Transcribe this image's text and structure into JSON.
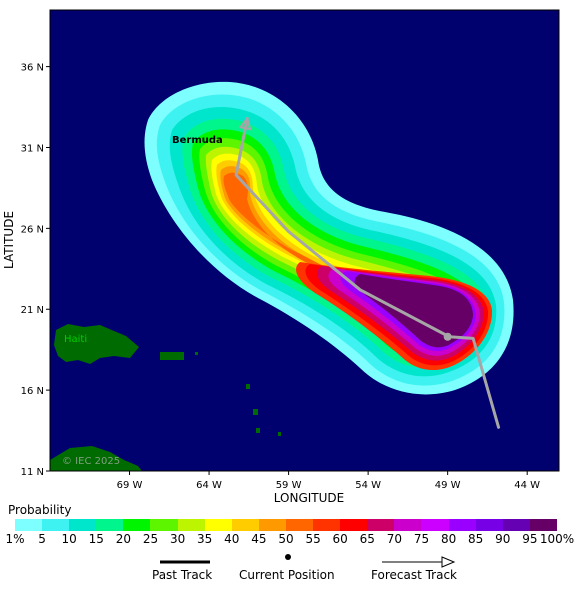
{
  "map": {
    "place_labels": {
      "bermuda": "Bermuda",
      "haiti": "Haiti"
    },
    "copyright": "© IEC 2025",
    "y_axis_title": "LATITUDE",
    "x_axis_title": "LONGITUDE",
    "lat_ticks": [
      "36 N",
      "31 N",
      "26 N",
      "21 N",
      "16 N",
      "11 N"
    ],
    "lon_ticks": [
      "69 W",
      "64 W",
      "59 W",
      "54 W",
      "49 W",
      "44 W"
    ],
    "lat_range": [
      11,
      39.5
    ],
    "lon_range": [
      -74,
      -42
    ],
    "colors": {
      "ocean": "#00006e",
      "land": "#006b00",
      "track": "#a6a6a6"
    },
    "track_points": [
      {
        "lon": -45.8,
        "lat": 13.7
      },
      {
        "lon": -47.4,
        "lat": 19.2
      },
      {
        "lon": -48.9,
        "lat": 19.3
      },
      {
        "lon": -54.5,
        "lat": 22.2
      },
      {
        "lon": -59.0,
        "lat": 25.8
      },
      {
        "lon": -62.3,
        "lat": 29.3
      },
      {
        "lon": -61.6,
        "lat": 32.8
      }
    ],
    "current_position": {
      "lon": -49.0,
      "lat": 19.3
    }
  },
  "legend": {
    "title": "Probability",
    "colors": [
      "#7dffff",
      "#3ff2f2",
      "#00e6cc",
      "#00f58c",
      "#00f500",
      "#5df500",
      "#bdf500",
      "#ffff00",
      "#ffcc00",
      "#ff9900",
      "#ff6600",
      "#ff3300",
      "#ff0000",
      "#cc0066",
      "#cc00cc",
      "#cc00ff",
      "#9900ff",
      "#7700e6",
      "#6600b3",
      "#660066"
    ],
    "labels": [
      "1%",
      "5",
      "10",
      "15",
      "20",
      "25",
      "30",
      "35",
      "40",
      "45",
      "50",
      "55",
      "60",
      "65",
      "70",
      "75",
      "80",
      "85",
      "90",
      "95",
      "100%"
    ]
  },
  "key": {
    "past_track": "Past Track",
    "current_position": "Current Position",
    "forecast_track": "Forecast Track"
  }
}
